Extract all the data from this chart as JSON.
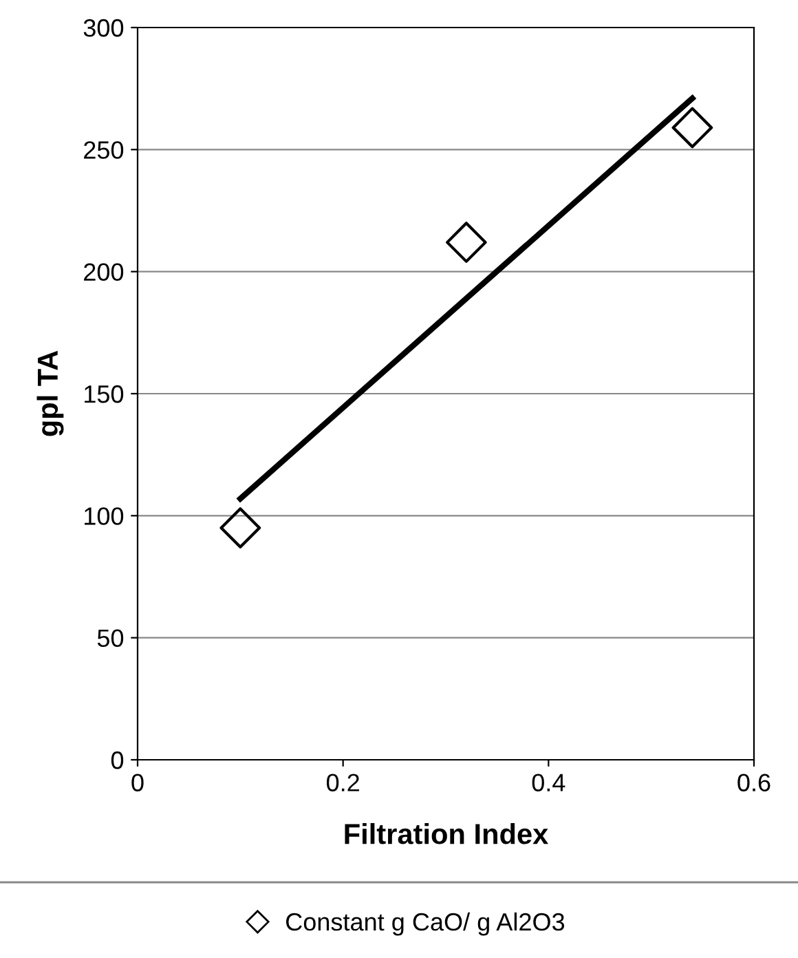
{
  "chart_data": {
    "type": "scatter",
    "xlabel": "Filtration Index",
    "ylabel": "gpl TA",
    "series": [
      {
        "name": "Constant g CaO/ g Al2O3",
        "color": "#000000",
        "x": [
          0.1,
          0.32,
          0.54
        ],
        "values": [
          95,
          212,
          259
        ],
        "marker": "diamond"
      },
      {
        "type": "line",
        "color": "#000000",
        "x": [
          0.1,
          0.54
        ],
        "values": [
          107,
          271
        ],
        "marker": "none",
        "line_style": "solid"
      }
    ],
    "xlim": [
      0,
      0.6
    ],
    "xticks": [
      0,
      0.2,
      0.4,
      0.6
    ],
    "ylim": [
      0,
      300
    ],
    "yticks": [
      0,
      50,
      100,
      150,
      200,
      250,
      300
    ],
    "grid": "y",
    "legend": "bottom"
  }
}
